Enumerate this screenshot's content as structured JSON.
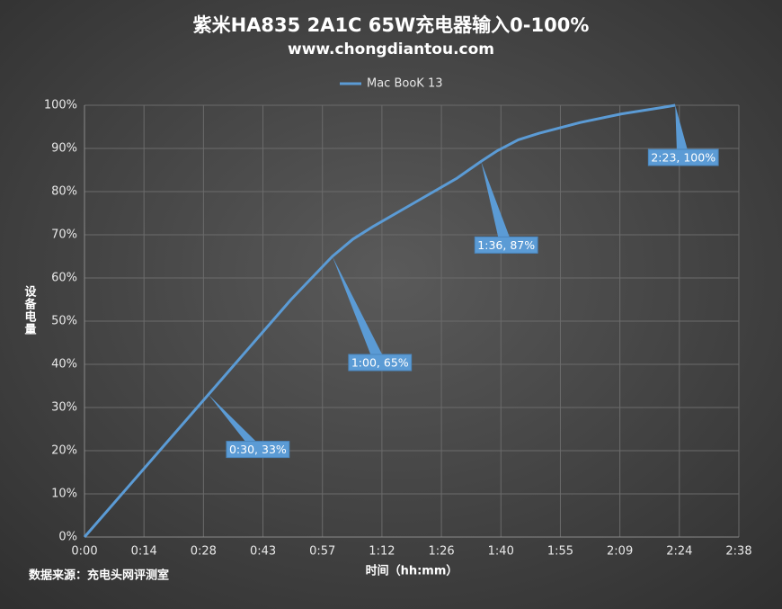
{
  "chart_data": {
    "type": "line",
    "title": "紫米HA835 2A1C 65W充电器输入0-100%",
    "subtitle": "www.chongdiantou.com",
    "x_label": "时间（hh:mm）",
    "y_label": "设备电量",
    "source": "数据来源：充电头网评测室",
    "x": [
      0,
      10,
      20,
      30,
      40,
      50,
      55,
      60,
      65,
      70,
      80,
      90,
      96,
      100,
      105,
      110,
      120,
      130,
      140,
      143
    ],
    "series": [
      {
        "name": "Mac BooK 13",
        "color": "#5b9bd5",
        "values": [
          0,
          11,
          22,
          33,
          44,
          55,
          60,
          65,
          69,
          72,
          77.5,
          83,
          87,
          89.5,
          92,
          93.5,
          96,
          98,
          99.5,
          100
        ]
      }
    ],
    "annotations": [
      {
        "text": "0:30, 33%",
        "x": 30,
        "y": 33
      },
      {
        "text": "1:00, 65%",
        "x": 60,
        "y": 65
      },
      {
        "text": "1:36, 87%",
        "x": 96,
        "y": 87
      },
      {
        "text": "2:23, 100%",
        "x": 143,
        "y": 100
      }
    ],
    "xlim": [
      0,
      158.4
    ],
    "xticks": [
      {
        "value": 0,
        "label": "0:00"
      },
      {
        "value": 14.4,
        "label": "0:14"
      },
      {
        "value": 28.8,
        "label": "0:28"
      },
      {
        "value": 43.2,
        "label": "0:43"
      },
      {
        "value": 57.6,
        "label": "0:57"
      },
      {
        "value": 72,
        "label": "1:12"
      },
      {
        "value": 86.4,
        "label": "1:26"
      },
      {
        "value": 100.8,
        "label": "1:40"
      },
      {
        "value": 115.2,
        "label": "1:55"
      },
      {
        "value": 129.6,
        "label": "2:09"
      },
      {
        "value": 144,
        "label": "2:24"
      },
      {
        "value": 158.4,
        "label": "2:38"
      }
    ],
    "ylim": [
      0,
      100
    ],
    "yticks": [
      {
        "value": 0,
        "label": "0%"
      },
      {
        "value": 10,
        "label": "10%"
      },
      {
        "value": 20,
        "label": "20%"
      },
      {
        "value": 30,
        "label": "30%"
      },
      {
        "value": 40,
        "label": "40%"
      },
      {
        "value": 50,
        "label": "50%"
      },
      {
        "value": 60,
        "label": "60%"
      },
      {
        "value": 70,
        "label": "70%"
      },
      {
        "value": 80,
        "label": "80%"
      },
      {
        "value": 90,
        "label": "90%"
      },
      {
        "value": 100,
        "label": "100%"
      }
    ],
    "grid": true,
    "legend": "top"
  }
}
